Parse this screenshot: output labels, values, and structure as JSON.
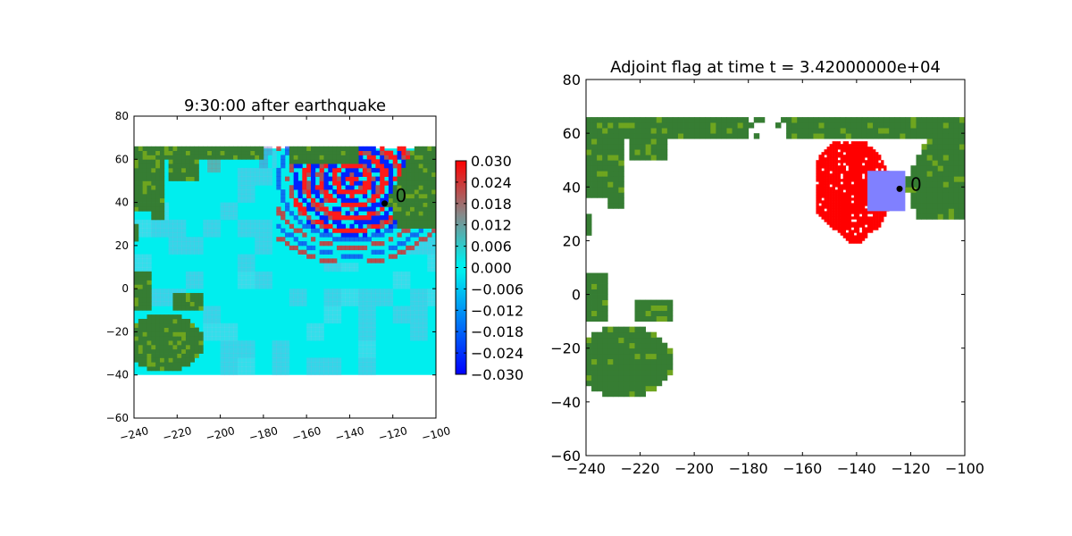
{
  "chart_data": [
    {
      "type": "heatmap",
      "title": "9:30:00 after earthquake",
      "xlim": [
        -240,
        -100
      ],
      "ylim": [
        -60,
        80
      ],
      "xticks": [
        -240,
        -220,
        -200,
        -180,
        -160,
        -140,
        -120,
        -100
      ],
      "yticks": [
        -60,
        -40,
        -20,
        0,
        20,
        40,
        60,
        80
      ],
      "xtick_labels": [
        "−240",
        "−220",
        "−200",
        "−180",
        "−160",
        "−140",
        "−120",
        "−100"
      ],
      "ytick_labels": [
        "−60",
        "−40",
        "−20",
        "0",
        "20",
        "40",
        "60",
        "80"
      ],
      "domain_extent": {
        "x": [
          -240,
          -100
        ],
        "y": [
          -40,
          65
        ]
      },
      "gauge": {
        "label": "0",
        "lon": -123.8,
        "lat": 39.5
      },
      "colorbar": {
        "range": [
          -0.03,
          0.03
        ],
        "ticks": [
          0.03,
          0.024,
          0.018,
          0.012,
          0.006,
          0.0,
          -0.006,
          -0.012,
          -0.018,
          -0.024,
          -0.03
        ],
        "tick_labels": [
          "0.030",
          "0.024",
          "0.018",
          "0.012",
          "0.006",
          "0.000",
          "−0.006",
          "−0.012",
          "−0.018",
          "−0.024",
          "−0.030"
        ],
        "colors": [
          "#0000ff",
          "#00eeee",
          "#888888",
          "#ff0000"
        ]
      },
      "colors": {
        "land": "#367d33",
        "land_light": "#6ea51f",
        "ocean": "#00eeee"
      }
    },
    {
      "type": "heatmap",
      "title": "Adjoint flag at time t = 3.42000000e+04",
      "xlim": [
        -240,
        -100
      ],
      "ylim": [
        -60,
        80
      ],
      "xticks": [
        -240,
        -220,
        -200,
        -180,
        -160,
        -140,
        -120,
        -100
      ],
      "yticks": [
        -60,
        -40,
        -20,
        0,
        20,
        40,
        60,
        80
      ],
      "xtick_labels": [
        "−240",
        "−220",
        "−200",
        "−180",
        "−160",
        "−140",
        "−120",
        "−100"
      ],
      "ytick_labels": [
        "−60",
        "−40",
        "−20",
        "0",
        "20",
        "40",
        "60",
        "80"
      ],
      "domain_extent": {
        "x": [
          -240,
          -100
        ],
        "y": [
          -40,
          65
        ]
      },
      "gauge": {
        "label": "0",
        "lon": -124.1,
        "lat": 39.3
      },
      "flag_region": {
        "lon_center": -143,
        "lat_center": 38,
        "lon_range": [
          -157,
          -127
        ],
        "lat_range": [
          17,
          57
        ]
      },
      "gauge_box": {
        "x": [
          -136,
          -122
        ],
        "y": [
          31,
          46
        ]
      },
      "colors": {
        "land": "#367d33",
        "land_light": "#6ea51f",
        "flag": "#ff0000",
        "gauge_box": "#8080ff"
      }
    }
  ]
}
